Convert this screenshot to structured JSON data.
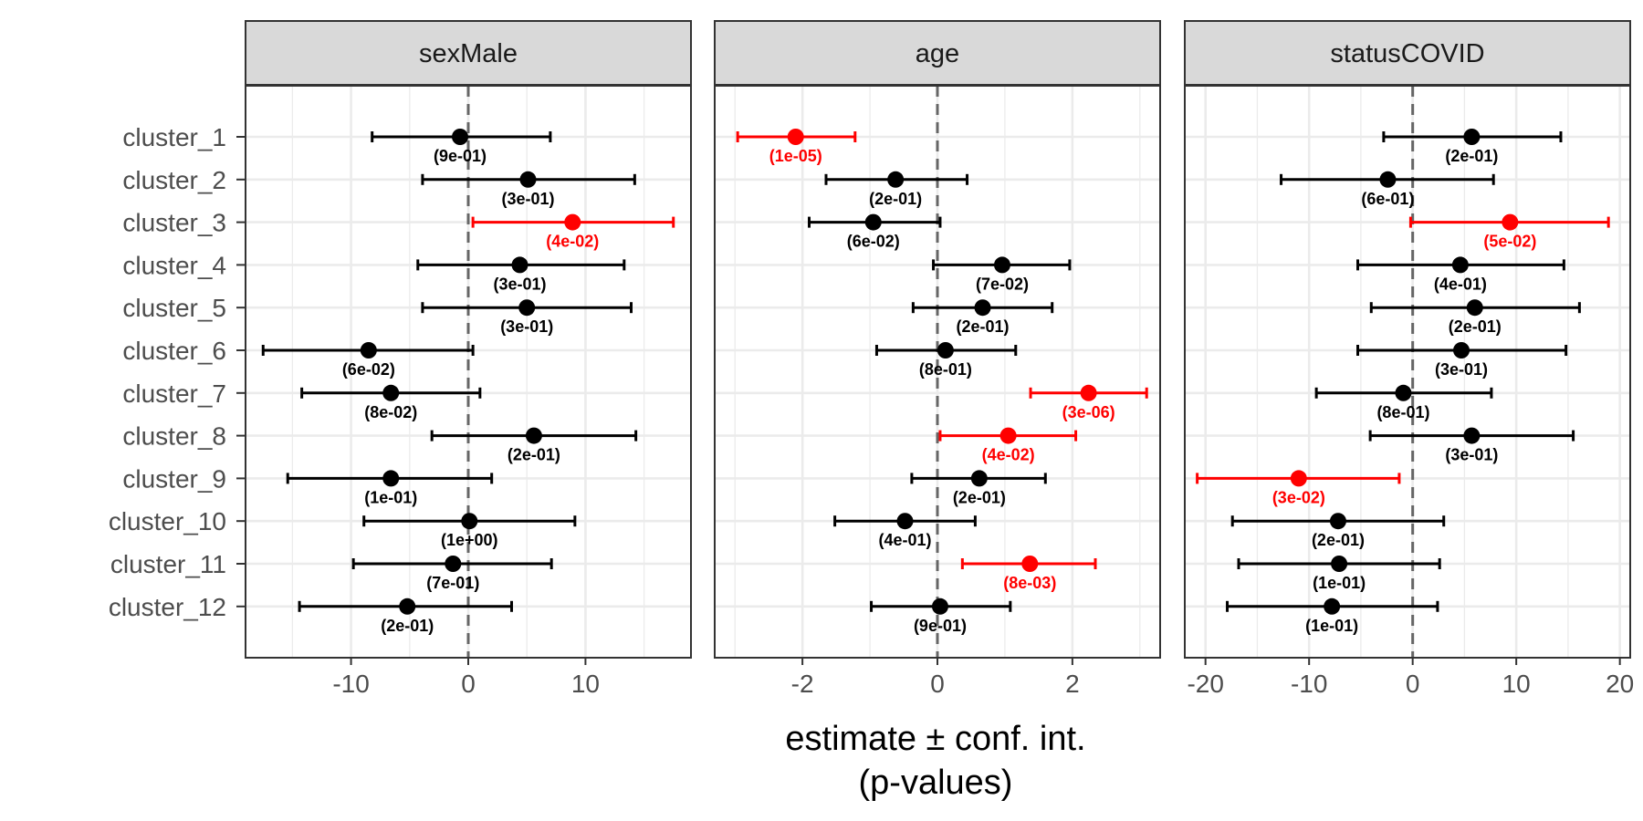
{
  "chart_data": {
    "type": "scatter",
    "subtype": "forest-plot",
    "xlabel_line1": "estimate ± conf. int.",
    "xlabel_line2": "(p-values)",
    "categories": [
      "cluster_1",
      "cluster_2",
      "cluster_3",
      "cluster_4",
      "cluster_5",
      "cluster_6",
      "cluster_7",
      "cluster_8",
      "cluster_9",
      "cluster_10",
      "cluster_11",
      "cluster_12"
    ],
    "colors": {
      "significant": "#ff0000",
      "normal": "#000000",
      "zero_line": "#666666",
      "strip_bg": "#d9d9d9",
      "grid": "#ebebeb"
    },
    "grid": true,
    "panels": [
      {
        "title": "sexMale",
        "xlim": [
          -19,
          19
        ],
        "xticks": [
          -10,
          0,
          10
        ],
        "xtick_labels": [
          "-10",
          "0",
          "10"
        ],
        "points": [
          {
            "estimate": -0.7,
            "lo": -8.2,
            "hi": 7.0,
            "p": "(9e-01)",
            "significant": false
          },
          {
            "estimate": 5.1,
            "lo": -3.9,
            "hi": 14.2,
            "p": "(3e-01)",
            "significant": false
          },
          {
            "estimate": 8.9,
            "lo": 0.4,
            "hi": 17.5,
            "p": "(4e-02)",
            "significant": true
          },
          {
            "estimate": 4.4,
            "lo": -4.3,
            "hi": 13.3,
            "p": "(3e-01)",
            "significant": false
          },
          {
            "estimate": 5.0,
            "lo": -3.9,
            "hi": 13.9,
            "p": "(3e-01)",
            "significant": false
          },
          {
            "estimate": -8.5,
            "lo": -17.5,
            "hi": 0.4,
            "p": "(6e-02)",
            "significant": false
          },
          {
            "estimate": -6.6,
            "lo": -14.2,
            "hi": 1.0,
            "p": "(8e-02)",
            "significant": false
          },
          {
            "estimate": 5.6,
            "lo": -3.1,
            "hi": 14.3,
            "p": "(2e-01)",
            "significant": false
          },
          {
            "estimate": -6.6,
            "lo": -15.4,
            "hi": 2.0,
            "p": "(1e-01)",
            "significant": false
          },
          {
            "estimate": 0.1,
            "lo": -8.9,
            "hi": 9.1,
            "p": "(1e+00)",
            "significant": false
          },
          {
            "estimate": -1.3,
            "lo": -9.8,
            "hi": 7.1,
            "p": "(7e-01)",
            "significant": false
          },
          {
            "estimate": -5.2,
            "lo": -14.4,
            "hi": 3.7,
            "p": "(2e-01)",
            "significant": false
          }
        ]
      },
      {
        "title": "age",
        "xlim": [
          -3.3,
          3.3
        ],
        "xticks": [
          -2,
          0,
          2
        ],
        "xtick_labels": [
          "-2",
          "0",
          "2"
        ],
        "points": [
          {
            "estimate": -2.1,
            "lo": -2.96,
            "hi": -1.22,
            "p": "(1e-05)",
            "significant": true
          },
          {
            "estimate": -0.62,
            "lo": -1.65,
            "hi": 0.44,
            "p": "(2e-01)",
            "significant": false
          },
          {
            "estimate": -0.95,
            "lo": -1.9,
            "hi": 0.04,
            "p": "(6e-02)",
            "significant": false
          },
          {
            "estimate": 0.96,
            "lo": -0.06,
            "hi": 1.96,
            "p": "(7e-02)",
            "significant": false
          },
          {
            "estimate": 0.67,
            "lo": -0.36,
            "hi": 1.7,
            "p": "(2e-01)",
            "significant": false
          },
          {
            "estimate": 0.12,
            "lo": -0.9,
            "hi": 1.16,
            "p": "(8e-01)",
            "significant": false
          },
          {
            "estimate": 2.24,
            "lo": 1.38,
            "hi": 3.1,
            "p": "(3e-06)",
            "significant": true
          },
          {
            "estimate": 1.05,
            "lo": 0.04,
            "hi": 2.05,
            "p": "(4e-02)",
            "significant": true
          },
          {
            "estimate": 0.62,
            "lo": -0.38,
            "hi": 1.6,
            "p": "(2e-01)",
            "significant": false
          },
          {
            "estimate": -0.48,
            "lo": -1.52,
            "hi": 0.56,
            "p": "(4e-01)",
            "significant": false
          },
          {
            "estimate": 1.37,
            "lo": 0.37,
            "hi": 2.34,
            "p": "(8e-03)",
            "significant": true
          },
          {
            "estimate": 0.04,
            "lo": -0.98,
            "hi": 1.08,
            "p": "(9e-01)",
            "significant": false
          }
        ]
      },
      {
        "title": "statusCOVID",
        "xlim": [
          -22,
          21
        ],
        "xticks": [
          -20,
          -10,
          0,
          10,
          20
        ],
        "xtick_labels": [
          "-20",
          "-10",
          "0",
          "10",
          "20"
        ],
        "points": [
          {
            "estimate": 5.7,
            "lo": -2.8,
            "hi": 14.3,
            "p": "(2e-01)",
            "significant": false
          },
          {
            "estimate": -2.4,
            "lo": -12.7,
            "hi": 7.8,
            "p": "(6e-01)",
            "significant": false
          },
          {
            "estimate": 9.4,
            "lo": -0.2,
            "hi": 18.9,
            "p": "(5e-02)",
            "significant": true
          },
          {
            "estimate": 4.6,
            "lo": -5.3,
            "hi": 14.6,
            "p": "(4e-01)",
            "significant": false
          },
          {
            "estimate": 6.0,
            "lo": -4.0,
            "hi": 16.1,
            "p": "(2e-01)",
            "significant": false
          },
          {
            "estimate": 4.7,
            "lo": -5.3,
            "hi": 14.8,
            "p": "(3e-01)",
            "significant": false
          },
          {
            "estimate": -0.9,
            "lo": -9.3,
            "hi": 7.6,
            "p": "(8e-01)",
            "significant": false
          },
          {
            "estimate": 5.7,
            "lo": -4.1,
            "hi": 15.5,
            "p": "(3e-01)",
            "significant": false
          },
          {
            "estimate": -11.0,
            "lo": -20.8,
            "hi": -1.3,
            "p": "(3e-02)",
            "significant": true
          },
          {
            "estimate": -7.2,
            "lo": -17.4,
            "hi": 3.0,
            "p": "(2e-01)",
            "significant": false
          },
          {
            "estimate": -7.1,
            "lo": -16.8,
            "hi": 2.6,
            "p": "(1e-01)",
            "significant": false
          },
          {
            "estimate": -7.8,
            "lo": -17.9,
            "hi": 2.4,
            "p": "(1e-01)",
            "significant": false
          }
        ]
      }
    ]
  }
}
